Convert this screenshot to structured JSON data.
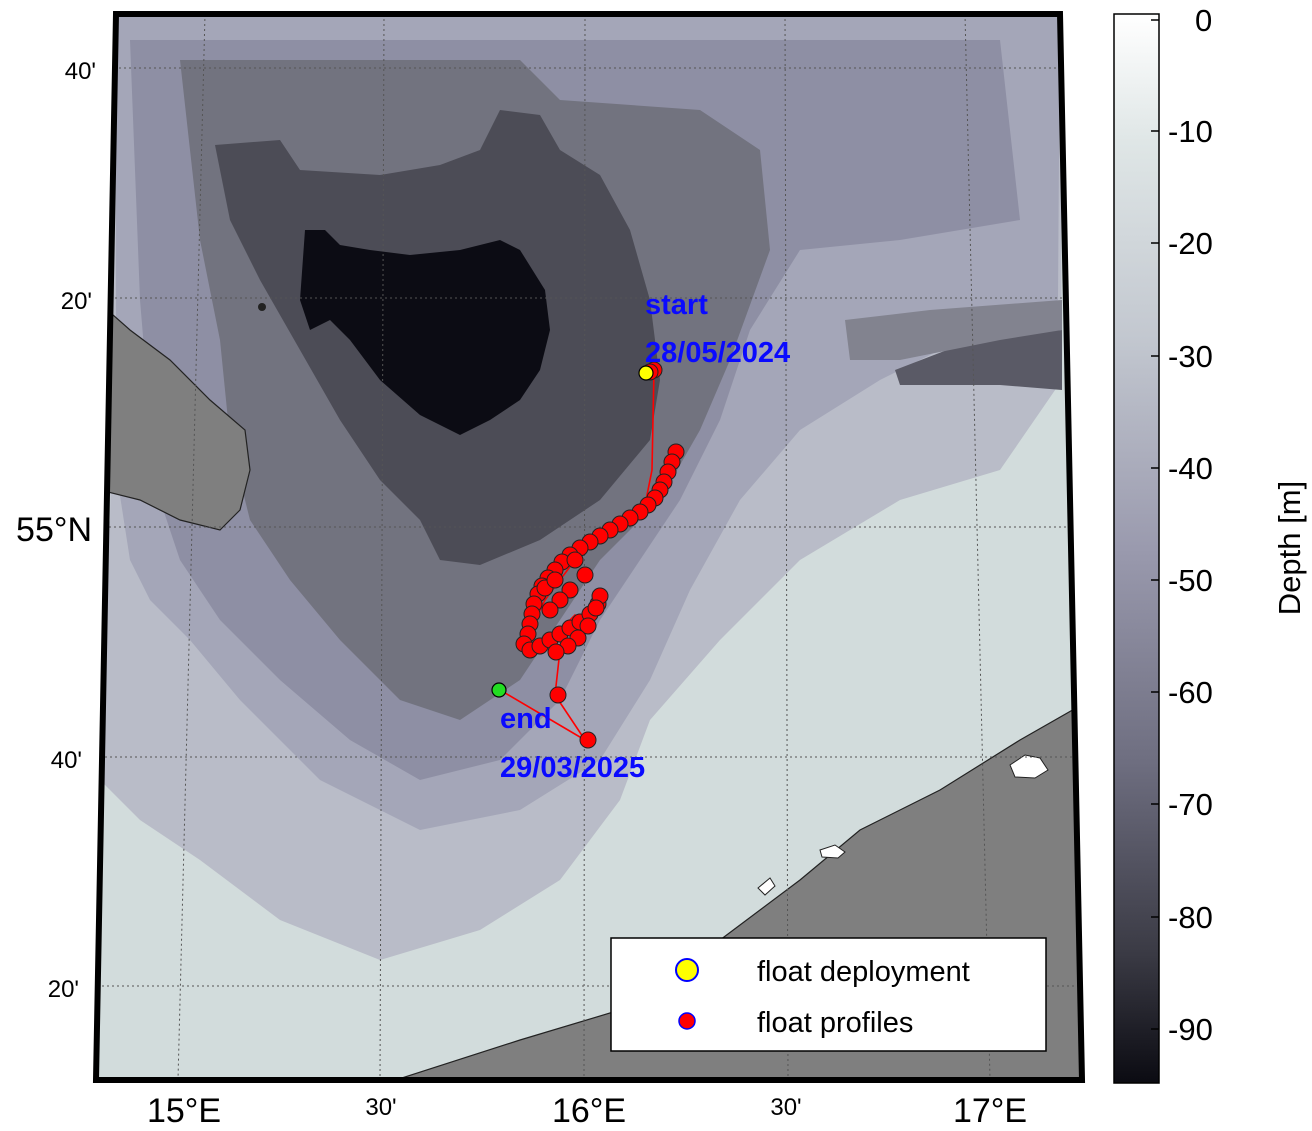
{
  "map": {
    "lat_labels": [
      "40'",
      "20'",
      "55°N",
      "40'",
      "20'"
    ],
    "lon_labels": [
      "15°E",
      "30'",
      "16°E",
      "30'",
      "17°E"
    ],
    "start_label": "start",
    "start_date": "28/05/2024",
    "end_label": "end",
    "end_date": "29/03/2025",
    "deployment_color": "#ffff00",
    "profile_color": "#ff0000",
    "end_color": "#22dd22",
    "track_color": "#ff0000",
    "land_color": "#7f7f7f"
  },
  "legend": {
    "items": [
      {
        "label": "float deployment",
        "icon": "yellow-circle-icon"
      },
      {
        "label": "float profiles",
        "icon": "red-circle-icon"
      }
    ]
  },
  "colorbar": {
    "title": "Depth [m]",
    "ticks": [
      "0",
      "-10",
      "-20",
      "-30",
      "-40",
      "-50",
      "-60",
      "-70",
      "-80",
      "-90"
    ]
  }
}
